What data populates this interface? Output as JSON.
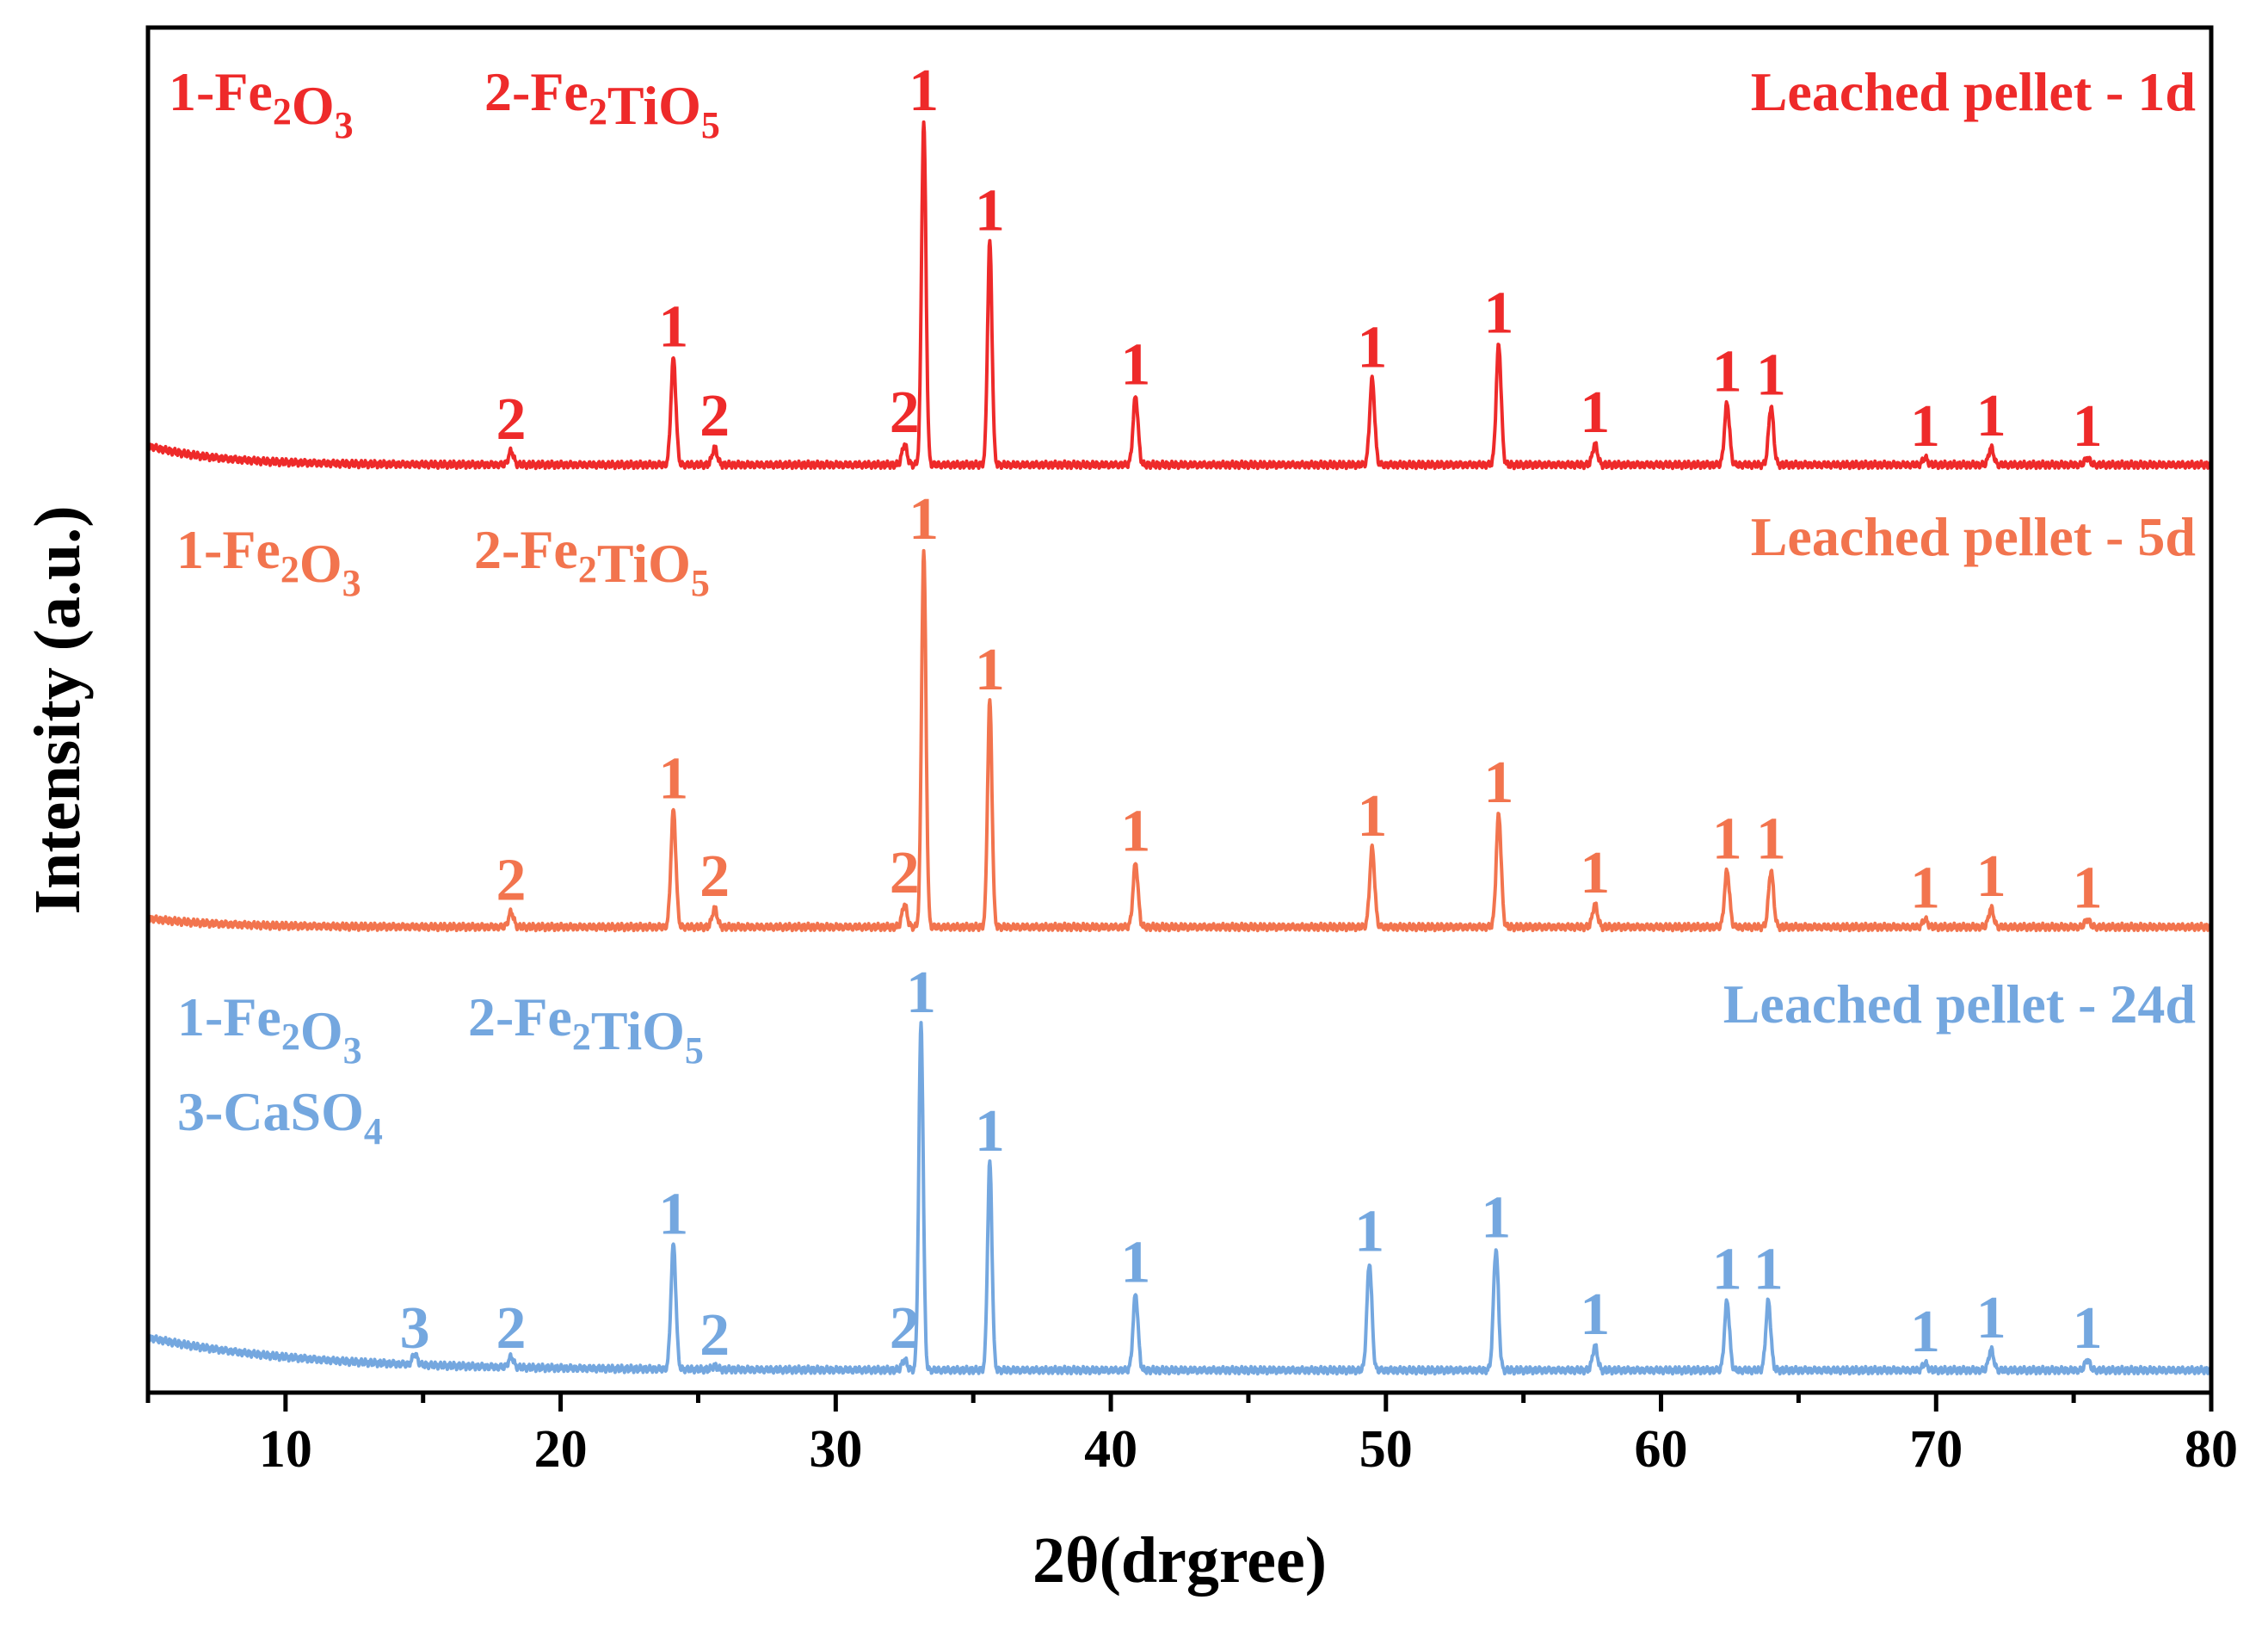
{
  "chart_data": {
    "type": "line",
    "xlabel": "2θ(drgree)",
    "ylabel": "Intensity (a.u.)",
    "xlim": [
      5,
      80
    ],
    "xticks": [
      10,
      20,
      30,
      40,
      50,
      60,
      70,
      80
    ],
    "yticks_shown": false,
    "grid": false,
    "series": [
      {
        "name": "Leached pellet - 1d",
        "color": "#ee2a2a",
        "phases": [
          "1-Fe2O3",
          "2-Fe2TiO5"
        ],
        "peaks": [
          {
            "x": 18.2,
            "h": 0.04,
            "label": "2"
          },
          {
            "x": 24.1,
            "h": 0.31,
            "label": "1"
          },
          {
            "x": 25.6,
            "h": 0.05,
            "label": "2"
          },
          {
            "x": 32.5,
            "h": 0.06,
            "label": "2"
          },
          {
            "x": 33.2,
            "h": 1.0,
            "label": "1"
          },
          {
            "x": 35.6,
            "h": 0.65,
            "label": "1"
          },
          {
            "x": 40.9,
            "h": 0.2,
            "label": "1"
          },
          {
            "x": 49.5,
            "h": 0.25,
            "label": "1"
          },
          {
            "x": 54.1,
            "h": 0.35,
            "label": "1"
          },
          {
            "x": 57.6,
            "h": 0.06,
            "label": "1"
          },
          {
            "x": 62.4,
            "h": 0.18,
            "label": "1"
          },
          {
            "x": 64.0,
            "h": 0.17,
            "label": "1"
          },
          {
            "x": 69.6,
            "h": 0.02,
            "label": "1"
          },
          {
            "x": 72.0,
            "h": 0.05,
            "label": "1"
          },
          {
            "x": 75.5,
            "h": 0.02,
            "label": "1"
          }
        ]
      },
      {
        "name": "Leached pellet - 5d",
        "color": "#f2744e",
        "phases": [
          "1-Fe2O3",
          "2-Fe2TiO5"
        ],
        "peaks": [
          {
            "x": 18.2,
            "h": 0.04,
            "label": "2"
          },
          {
            "x": 24.1,
            "h": 0.31,
            "label": "1"
          },
          {
            "x": 25.6,
            "h": 0.05,
            "label": "2"
          },
          {
            "x": 32.5,
            "h": 0.06,
            "label": "2"
          },
          {
            "x": 33.2,
            "h": 1.0,
            "label": "1"
          },
          {
            "x": 35.6,
            "h": 0.6,
            "label": "1"
          },
          {
            "x": 40.9,
            "h": 0.17,
            "label": "1"
          },
          {
            "x": 49.5,
            "h": 0.21,
            "label": "1"
          },
          {
            "x": 54.1,
            "h": 0.3,
            "label": "1"
          },
          {
            "x": 57.6,
            "h": 0.06,
            "label": "1"
          },
          {
            "x": 62.4,
            "h": 0.15,
            "label": "1"
          },
          {
            "x": 64.0,
            "h": 0.15,
            "label": "1"
          },
          {
            "x": 69.6,
            "h": 0.02,
            "label": "1"
          },
          {
            "x": 72.0,
            "h": 0.05,
            "label": "1"
          },
          {
            "x": 75.5,
            "h": 0.02,
            "label": "1"
          }
        ]
      },
      {
        "name": "Leached pellet - 24d",
        "color": "#74a7df",
        "phases": [
          "1-Fe2O3",
          "2-Fe2TiO5",
          "3-CaSO4"
        ],
        "peaks": [
          {
            "x": 14.7,
            "h": 0.03,
            "label": "3"
          },
          {
            "x": 18.2,
            "h": 0.03,
            "label": "2"
          },
          {
            "x": 24.1,
            "h": 0.36,
            "label": "1"
          },
          {
            "x": 25.6,
            "h": 0.01,
            "label": "2"
          },
          {
            "x": 32.5,
            "h": 0.03,
            "label": "2"
          },
          {
            "x": 33.1,
            "h": 1.0,
            "label": "1"
          },
          {
            "x": 35.6,
            "h": 0.6,
            "label": "1"
          },
          {
            "x": 40.9,
            "h": 0.22,
            "label": "1"
          },
          {
            "x": 49.4,
            "h": 0.31,
            "label": "1"
          },
          {
            "x": 54.0,
            "h": 0.35,
            "label": "1"
          },
          {
            "x": 57.6,
            "h": 0.07,
            "label": "1"
          },
          {
            "x": 62.4,
            "h": 0.2,
            "label": "1"
          },
          {
            "x": 63.9,
            "h": 0.2,
            "label": "1"
          },
          {
            "x": 69.6,
            "h": 0.02,
            "label": "1"
          },
          {
            "x": 72.0,
            "h": 0.06,
            "label": "1"
          },
          {
            "x": 75.5,
            "h": 0.03,
            "label": "1"
          }
        ]
      }
    ]
  }
}
